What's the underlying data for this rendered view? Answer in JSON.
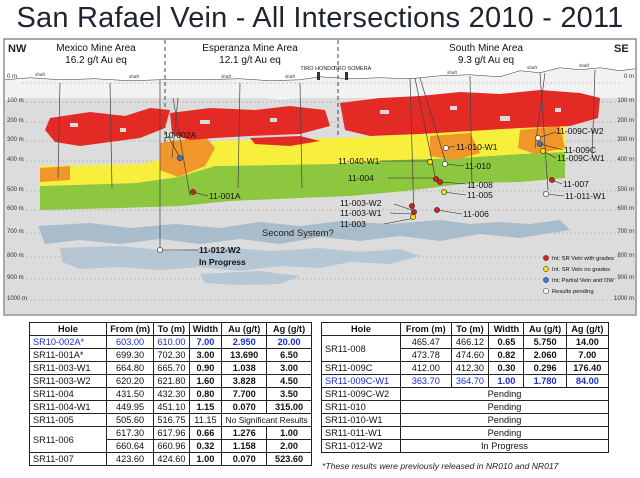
{
  "title": "San Rafael Vein  - All Intersections 2010 - 2011",
  "section": {
    "left_dir": "NW",
    "right_dir": "SE",
    "areas": [
      {
        "name": "Mexico Mine Area",
        "grade": "16.2 g/t Au eq"
      },
      {
        "name": "Esperanza Mine Area",
        "grade": "12.1 g/t Au eq"
      },
      {
        "name": "South Mine Area",
        "grade": "9.3 g/t Au eq"
      }
    ],
    "depths": [
      "0 m",
      "100 m",
      "200 m",
      "300 m",
      "400 m",
      "500 m",
      "600 m",
      "700 m",
      "800 m",
      "900 m",
      "1000 m"
    ],
    "depths_right": [
      "0 m",
      "100 m",
      "200 m",
      "300 m",
      "400 m",
      "500 m",
      "600 m",
      "700 m",
      "800 m",
      "900 m",
      "1000 m"
    ],
    "shafts": [
      "TIRO HONDO",
      "TIRO SOMERA"
    ],
    "shaft_small": "shaft",
    "hole_labels": [
      "10-002A",
      "11-001A",
      "11-040-W1",
      "11-004",
      "11-010-W1",
      "11-010",
      "11-008",
      "11-005",
      "11-003-W2",
      "11-003-W1",
      "11-003",
      "11-006",
      "11-009C-W2",
      "11-009C",
      "11-009C-W1",
      "11-007",
      "11-011-W1",
      "11-012-W2"
    ],
    "in_progress": "In Progress",
    "second_system": "Second System?",
    "legend": [
      {
        "label": "Int. SR Vein with grades",
        "color": "#d62020"
      },
      {
        "label": "Int. SR Vein no grades",
        "color": "#f5e000"
      },
      {
        "label": "Int. Partial Vein and OW",
        "color": "#2f7de1"
      },
      {
        "label": "Results pending",
        "color": "#ffffff"
      }
    ]
  },
  "table_left": {
    "headers": [
      "Hole",
      "From (m)",
      "To (m)",
      "Width",
      "Au (g/t)",
      "Ag (g/t)"
    ],
    "rows": [
      {
        "hole": "SR10-002A*",
        "from": "603.00",
        "to": "610.00",
        "width": "7.00",
        "au": "2.950",
        "ag": "20.00"
      },
      {
        "hole": "SR11-001A*",
        "from": "699.30",
        "to": "702.30",
        "width": "3.00",
        "au": "13.690",
        "ag": "6.50"
      },
      {
        "hole": "SR11-003-W1",
        "from": "664.80",
        "to": "665.70",
        "width": "0.90",
        "au": "1.038",
        "ag": "3.00"
      },
      {
        "hole": "SR11-003-W2",
        "from": "620.20",
        "to": "621.80",
        "width": "1.60",
        "au": "3.828",
        "ag": "4.50"
      },
      {
        "hole": "SR11-004",
        "from": "431.50",
        "to": "432.30",
        "width": "0.80",
        "au": "7.700",
        "ag": "3.50"
      },
      {
        "hole": "SR11-004-W1",
        "from": "449.95",
        "to": "451.10",
        "width": "1.15",
        "au": "0.070",
        "ag": "315.00"
      },
      {
        "hole": "SR11-005",
        "from": "505.60",
        "to": "516.75",
        "width": "11.15",
        "note": "No Significant Results"
      },
      {
        "hole": "SR11-006",
        "from": "617.30",
        "to": "617.96",
        "width": "0.66",
        "au": "1.276",
        "ag": "1.00"
      },
      {
        "from": "660.64",
        "to": "660.96",
        "width": "0.32",
        "au": "1.158",
        "ag": "2.00"
      },
      {
        "hole": "SR11-007",
        "from": "423.60",
        "to": "424.60",
        "width": "1.00",
        "au": "0.070",
        "ag": "523.60"
      }
    ]
  },
  "table_right": {
    "headers": [
      "Hole",
      "From (m)",
      "To (m)",
      "Width",
      "Au (g/t)",
      "Ag (g/t)"
    ],
    "rows": [
      {
        "hole": "SR11-008",
        "from": "465.47",
        "to": "466.12",
        "width": "0.65",
        "au": "5.750",
        "ag": "14.00"
      },
      {
        "from": "473.78",
        "to": "474.60",
        "width": "0.82",
        "au": "2.060",
        "ag": "7.00"
      },
      {
        "hole": "SR11-009C",
        "from": "412.00",
        "to": "412.30",
        "width": "0.30",
        "au": "0.296",
        "ag": "176.40"
      },
      {
        "hole": "SR11-009C-W1",
        "from": "363.70",
        "to": "364.70",
        "width": "1.00",
        "au": "1.780",
        "ag": "84.00"
      },
      {
        "hole": "SR11-009C-W2",
        "status": "Pending"
      },
      {
        "hole": "SR11-010",
        "status": "Pending"
      },
      {
        "hole": "SR11-010-W1",
        "status": "Pending"
      },
      {
        "hole": "SR11-011-W1",
        "status": "Pending"
      },
      {
        "hole": "SR11-012-W2",
        "status": "In Progress"
      }
    ]
  },
  "footnote": "*These results were previously released in NR010 and NR017",
  "colors": {
    "ore_red": "#e42a25",
    "ore_orange": "#f0962a",
    "vein_yellow": "#f8ee3c",
    "vein_green": "#8dc63f",
    "rock_grey": "#dcdcdc",
    "blue_grey": "#a9bccc",
    "blue_text": "#1a2fcc"
  }
}
